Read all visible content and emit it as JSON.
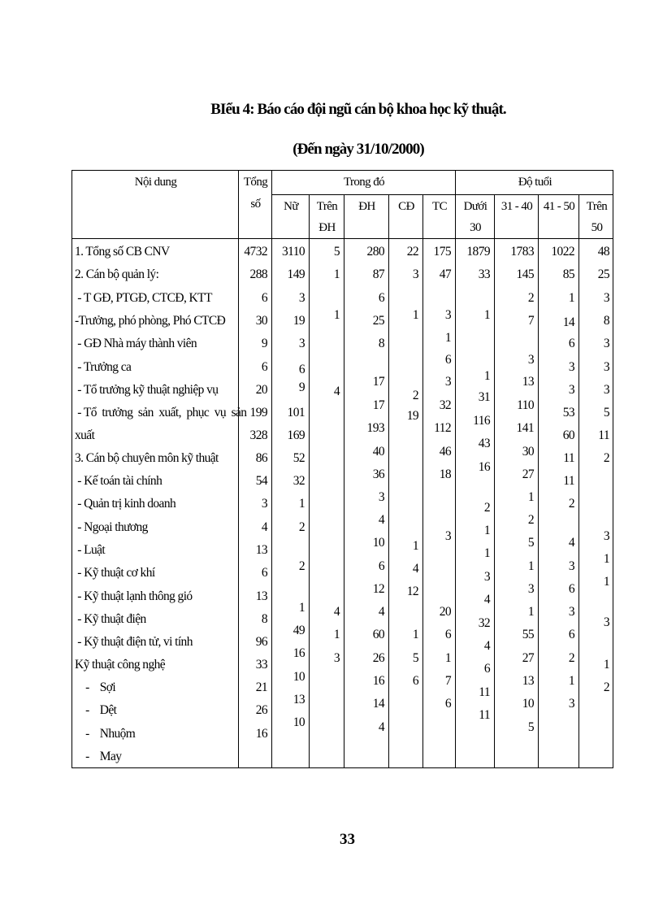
{
  "title": "BIểu 4: Báo cáo đội ngũ cán bộ khoa học kỹ thuật.",
  "subtitle": "(Đến ngày 31/10/2000)",
  "page_number": "33",
  "header": {
    "noi_dung": "Nội dung",
    "tong_so": [
      "Tổng",
      "số"
    ],
    "trong_do": "Trong đó",
    "do_tuoi": "Độ tuổi",
    "nu": "Nữ",
    "tren_dh": [
      "Trên",
      "ĐH"
    ],
    "dh": "ĐH",
    "cd": "CĐ",
    "tc": "TC",
    "duoi30": [
      "Dưới",
      "30"
    ],
    "a31_40": "31 - 40",
    "a41_50": "41 - 50",
    "tren50": [
      "Trên",
      "50"
    ]
  },
  "row_labels": [
    "1. Tổng số CB CNV",
    "2. Cán bộ quản lý:",
    " - T GĐ, PTGĐ, CTCĐ, KTT",
    "-Trưởng, phó phòng, Phó CTCĐ",
    " - GĐ Nhà máy thành viên",
    " - Trưởng ca",
    " - Tổ trưởng kỹ thuật nghiệp vụ",
    " - Tổ  trưởng  sản  xuất,  phục  vụ  sản",
    "xuất",
    "3. Cán bộ chuyên môn kỹ thuật",
    " - Kế toán tài chính",
    " - Quản trị kinh doanh",
    " - Ngoại thương",
    " - Luật",
    " - Kỹ thuật cơ khí",
    " - Kỹ thuật lạnh thông gió",
    " - Kỹ thuật điện",
    " - Kỹ thuật điện tử, vi tính",
    "Kỹ thuật công nghệ",
    "    -    Sợi",
    "    -    Dệt",
    "    -    Nhuộm",
    "    -    May"
  ],
  "columns": {
    "tong_so": [
      "4732",
      "288",
      "6",
      "30",
      "9",
      "6",
      "20",
      "199",
      "328",
      "86",
      "54",
      "3",
      "4",
      "13",
      "6",
      "13",
      "8",
      "96",
      "33",
      "21",
      "26",
      "16"
    ],
    "nu": [
      "3110",
      "149",
      "3",
      "19",
      "3",
      "6",
      "9",
      "101",
      "169",
      "52",
      "32",
      "1",
      "2",
      "2",
      "1",
      "49",
      "16",
      "10",
      "13",
      "10"
    ],
    "tren_dh": [
      "5",
      "1",
      "1",
      "4",
      "4",
      "1",
      "3"
    ],
    "dh": [
      "280",
      "87",
      "6",
      "25",
      "8",
      "17",
      "17",
      "193",
      "40",
      "36",
      "3",
      "4",
      "10",
      "6",
      "12",
      "4",
      "60",
      "26",
      "16",
      "14",
      "4"
    ],
    "cd": [
      "22",
      "3",
      "1",
      "2",
      "19",
      "1",
      "4",
      "12",
      "1",
      "5",
      "6"
    ],
    "tc": [
      "175",
      "47",
      "3",
      "1",
      "6",
      "3",
      "32",
      "112",
      "46",
      "18",
      "3",
      "20",
      "6",
      "1",
      "7",
      "6"
    ],
    "duoi30": [
      "1879",
      "33",
      "1",
      "1",
      "31",
      "116",
      "43",
      "16",
      "2",
      "1",
      "1",
      "3",
      "4",
      "32",
      "4",
      "6",
      "11",
      "11"
    ],
    "a31_40": [
      "1783",
      "145",
      "2",
      "7",
      "3",
      "13",
      "110",
      "141",
      "30",
      "27",
      "1",
      "2",
      "5",
      "1",
      "3",
      "1",
      "55",
      "27",
      "13",
      "10",
      "5"
    ],
    "a41_50": [
      "1022",
      "85",
      "1",
      "14",
      "6",
      "3",
      "3",
      "53",
      "60",
      "11",
      "11",
      "2",
      "4",
      "3",
      "6",
      "3",
      "6",
      "2",
      "1",
      "3"
    ],
    "tren50": [
      "48",
      "25",
      "3",
      "8",
      "3",
      "3",
      "3",
      "5",
      "11",
      "2",
      "3",
      "1",
      "1",
      "3",
      "1",
      "2"
    ]
  }
}
